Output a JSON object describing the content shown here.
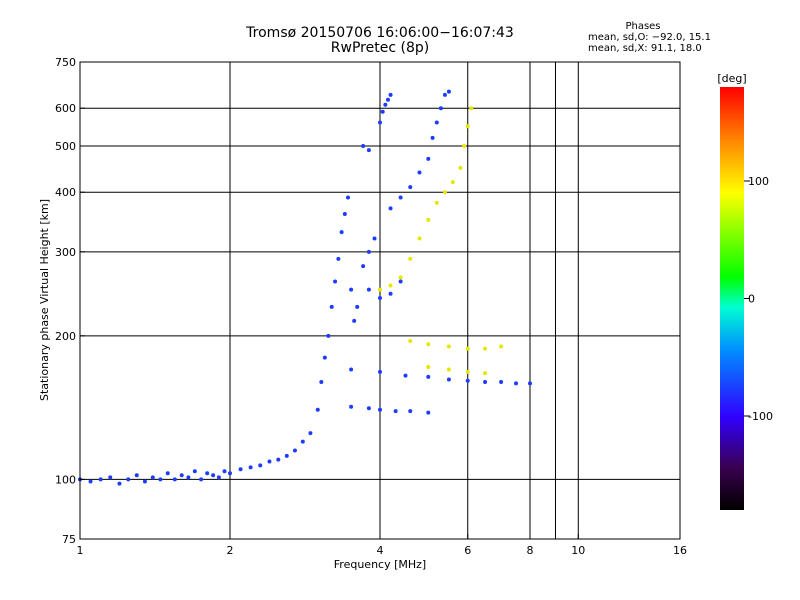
{
  "chart_data": {
    "type": "scatter",
    "title": "Tromsø 20150706 16:06:00−16:07:43",
    "subtitle": "RwPretec (8p)",
    "stats": {
      "heading": "Phases",
      "line1": "mean, sd,O: −92.0, 15.1",
      "line2": "mean, sd,X:  91.1, 18.0"
    },
    "xlabel": "Frequency [MHz]",
    "ylabel": "Stationary phase Virtual Height [km]",
    "x_scale": "log",
    "y_scale": "log",
    "xlim": [
      1,
      16
    ],
    "ylim": [
      75,
      750
    ],
    "x_ticks": [
      1,
      2,
      4,
      6,
      8,
      10,
      16
    ],
    "y_ticks": [
      75,
      100,
      200,
      300,
      400,
      500,
      600,
      750
    ],
    "grid_x": [
      2,
      4,
      6,
      8,
      9,
      10
    ],
    "grid_y": [
      100,
      200,
      300,
      400,
      500,
      600
    ],
    "colorbar": {
      "label": "[deg]",
      "range": [
        -180,
        180
      ],
      "ticks": [
        100,
        0,
        -100
      ]
    },
    "series": [
      {
        "color": "#1e3cff",
        "points": [
          [
            1.0,
            100
          ],
          [
            1.05,
            99
          ],
          [
            1.1,
            100
          ],
          [
            1.15,
            101
          ],
          [
            1.2,
            98
          ],
          [
            1.25,
            100
          ],
          [
            1.3,
            102
          ],
          [
            1.35,
            99
          ],
          [
            1.4,
            101
          ],
          [
            1.45,
            100
          ],
          [
            1.5,
            103
          ],
          [
            1.55,
            100
          ],
          [
            1.6,
            102
          ],
          [
            1.65,
            101
          ],
          [
            1.7,
            104
          ],
          [
            1.75,
            100
          ],
          [
            1.8,
            103
          ],
          [
            1.85,
            102
          ],
          [
            1.9,
            101
          ],
          [
            1.95,
            104
          ],
          [
            2.0,
            103
          ],
          [
            2.1,
            105
          ],
          [
            2.2,
            106
          ],
          [
            2.3,
            107
          ],
          [
            2.4,
            109
          ],
          [
            2.5,
            110
          ],
          [
            2.6,
            112
          ],
          [
            2.7,
            115
          ],
          [
            2.8,
            120
          ],
          [
            2.9,
            125
          ],
          [
            3.0,
            140
          ],
          [
            3.05,
            160
          ],
          [
            3.1,
            180
          ],
          [
            3.15,
            200
          ],
          [
            3.2,
            230
          ],
          [
            3.25,
            260
          ],
          [
            3.3,
            290
          ],
          [
            3.35,
            330
          ],
          [
            3.4,
            360
          ],
          [
            3.45,
            390
          ],
          [
            3.5,
            250
          ],
          [
            3.55,
            215
          ],
          [
            3.6,
            230
          ],
          [
            3.7,
            280
          ],
          [
            3.8,
            300
          ],
          [
            3.9,
            320
          ],
          [
            4.0,
            560
          ],
          [
            4.05,
            590
          ],
          [
            4.1,
            610
          ],
          [
            4.15,
            625
          ],
          [
            4.2,
            640
          ],
          [
            3.7,
            500
          ],
          [
            3.8,
            490
          ],
          [
            4.2,
            370
          ],
          [
            4.4,
            390
          ],
          [
            4.6,
            410
          ],
          [
            4.8,
            440
          ],
          [
            5.0,
            470
          ],
          [
            5.1,
            520
          ],
          [
            5.2,
            560
          ],
          [
            5.3,
            600
          ],
          [
            5.4,
            640
          ],
          [
            5.5,
            650
          ],
          [
            3.8,
            250
          ],
          [
            4.0,
            240
          ],
          [
            4.2,
            245
          ],
          [
            4.4,
            260
          ],
          [
            3.5,
            170
          ],
          [
            4.0,
            168
          ],
          [
            4.5,
            165
          ],
          [
            5.0,
            164
          ],
          [
            5.5,
            162
          ],
          [
            6.0,
            161
          ],
          [
            6.5,
            160
          ],
          [
            7.0,
            160
          ],
          [
            7.5,
            159
          ],
          [
            8.0,
            159
          ],
          [
            3.5,
            142
          ],
          [
            3.8,
            141
          ],
          [
            4.0,
            140
          ],
          [
            4.3,
            139
          ],
          [
            4.6,
            139
          ],
          [
            5.0,
            138
          ]
        ]
      },
      {
        "color": "#e6e600",
        "points": [
          [
            4.0,
            250
          ],
          [
            4.2,
            255
          ],
          [
            4.4,
            265
          ],
          [
            4.6,
            290
          ],
          [
            4.8,
            320
          ],
          [
            5.0,
            350
          ],
          [
            5.2,
            380
          ],
          [
            5.4,
            400
          ],
          [
            5.6,
            420
          ],
          [
            5.8,
            450
          ],
          [
            5.9,
            500
          ],
          [
            6.0,
            550
          ],
          [
            6.1,
            600
          ],
          [
            4.6,
            195
          ],
          [
            5.0,
            192
          ],
          [
            5.5,
            190
          ],
          [
            6.0,
            188
          ],
          [
            6.5,
            188
          ],
          [
            7.0,
            190
          ],
          [
            5.0,
            172
          ],
          [
            5.5,
            170
          ],
          [
            6.0,
            168
          ],
          [
            6.5,
            167
          ]
        ]
      }
    ]
  },
  "colors": {
    "background": "#ffffff",
    "axes": "#000000",
    "grid": "#000000"
  }
}
